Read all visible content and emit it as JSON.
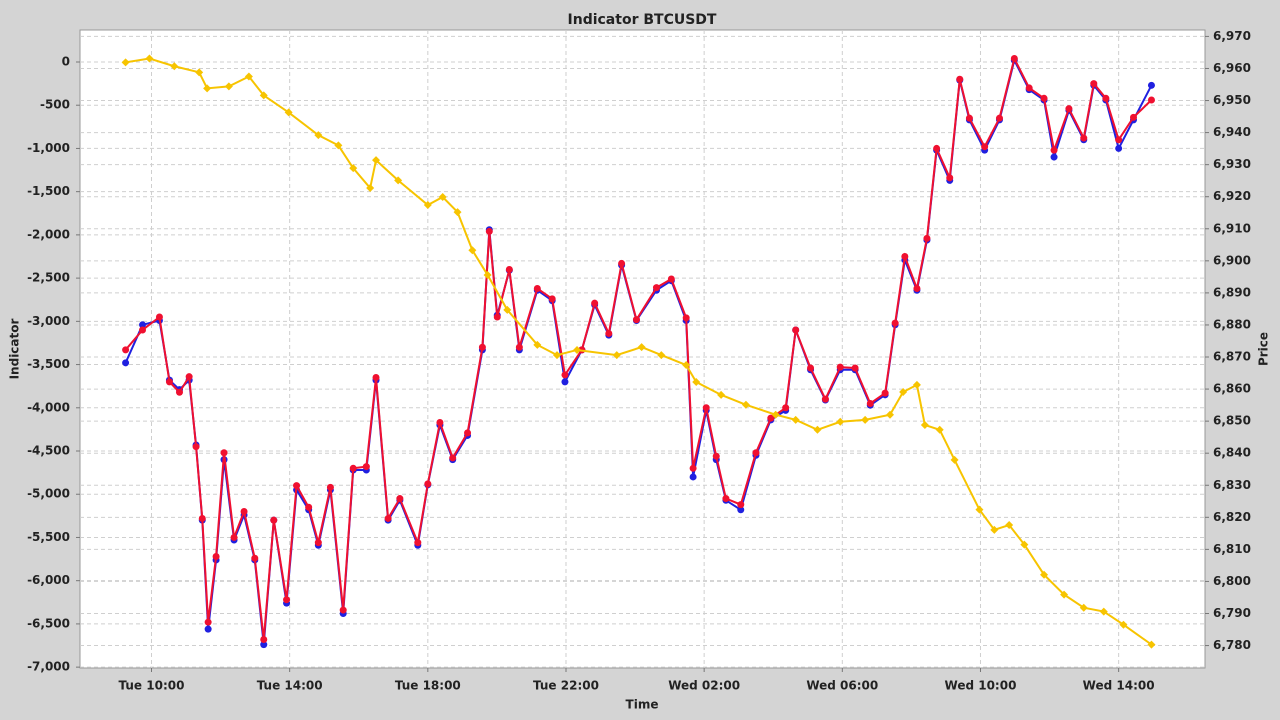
{
  "chart_data": {
    "type": "line",
    "title": "Indicator BTCUSDT",
    "x_label": "Time",
    "y_label": "Indicator",
    "y2_label": "Price",
    "xlim": [
      7.93,
      40.5
    ],
    "xticks": [
      {
        "value": 10,
        "label": "Tue 10:00"
      },
      {
        "value": 14,
        "label": "Tue 14:00"
      },
      {
        "value": 18,
        "label": "Tue 18:00"
      },
      {
        "value": 22,
        "label": "Tue 22:00"
      },
      {
        "value": 26,
        "label": "Wed 02:00"
      },
      {
        "value": 30,
        "label": "Wed 06:00"
      },
      {
        "value": 34,
        "label": "Wed 10:00"
      },
      {
        "value": 38,
        "label": "Wed 14:00"
      }
    ],
    "ylim": [
      -7010,
      370
    ],
    "yticks": [
      0,
      -500,
      {
        "value": -1000,
        "label": "-1,000"
      },
      {
        "value": -1500,
        "label": "-1,500"
      },
      {
        "value": -2000,
        "label": "-2,000"
      },
      {
        "value": -2500,
        "label": "-2,500"
      },
      {
        "value": -3000,
        "label": "-3,000"
      },
      {
        "value": -3500,
        "label": "-3,500"
      },
      {
        "value": -4000,
        "label": "-4,000"
      },
      {
        "value": -4500,
        "label": "-4,500"
      },
      {
        "value": -5000,
        "label": "-5,000"
      },
      {
        "value": -5500,
        "label": "-5,500"
      },
      {
        "value": -6000,
        "label": "-6,000"
      },
      {
        "value": -6500,
        "label": "-6,500"
      },
      {
        "value": -7000,
        "label": "-7,000"
      }
    ],
    "y2lim": [
      6773,
      6972
    ],
    "y2ticks": [
      {
        "value": 6780,
        "label": "6,780"
      },
      {
        "value": 6790,
        "label": "6,790"
      },
      {
        "value": 6800,
        "label": "6,800"
      },
      {
        "value": 6810,
        "label": "6,810"
      },
      {
        "value": 6820,
        "label": "6,820"
      },
      {
        "value": 6830,
        "label": "6,830"
      },
      {
        "value": 6840,
        "label": "6,840"
      },
      {
        "value": 6850,
        "label": "6,850"
      },
      {
        "value": 6860,
        "label": "6,860"
      },
      {
        "value": 6870,
        "label": "6,870"
      },
      {
        "value": 6880,
        "label": "6,880"
      },
      {
        "value": 6890,
        "label": "6,890"
      },
      {
        "value": 6900,
        "label": "6,900"
      },
      {
        "value": 6910,
        "label": "6,910"
      },
      {
        "value": 6920,
        "label": "6,920"
      },
      {
        "value": 6930,
        "label": "6,930"
      },
      {
        "value": 6940,
        "label": "6,940"
      },
      {
        "value": 6950,
        "label": "6,950"
      },
      {
        "value": 6960,
        "label": "6,960"
      },
      {
        "value": 6970,
        "label": "6,970"
      }
    ],
    "grid": true,
    "series": [
      {
        "color": "#2020e0",
        "marker": "circle",
        "x": [
          9.25,
          9.74,
          10.23,
          10.52,
          10.81,
          11.09,
          11.29,
          11.47,
          11.64,
          11.87,
          12.1,
          12.39,
          12.68,
          12.99,
          13.25,
          13.54,
          13.91,
          14.2,
          14.55,
          14.83,
          15.18,
          15.55,
          15.84,
          16.22,
          16.5,
          16.85,
          17.19,
          17.71,
          18.0,
          18.35,
          18.72,
          19.15,
          19.58,
          19.78,
          20.01,
          20.36,
          20.65,
          21.17,
          21.6,
          21.97,
          22.46,
          22.83,
          23.24,
          23.61,
          24.04,
          24.62,
          25.05,
          25.48,
          25.68,
          26.06,
          26.35,
          26.63,
          27.06,
          27.5,
          27.93,
          28.36,
          28.65,
          29.08,
          29.51,
          29.94,
          30.37,
          30.81,
          31.24,
          31.53,
          31.81,
          32.16,
          32.45,
          32.73,
          33.11,
          33.4,
          33.68,
          34.12,
          34.55,
          34.98,
          35.41,
          35.84,
          36.13,
          36.56,
          36.99,
          37.28,
          37.63,
          38.0,
          38.43,
          38.95
        ],
        "values": [
          -3480,
          -3040,
          -2990,
          -3680,
          -3790,
          -3680,
          -4430,
          -5300,
          -6560,
          -5760,
          -4600,
          -5530,
          -5240,
          -5760,
          -6740,
          -5300,
          -6260,
          -4950,
          -5180,
          -5590,
          -4950,
          -6380,
          -4720,
          -4720,
          -3680,
          -5300,
          -5070,
          -5590,
          -4890,
          -4200,
          -4600,
          -4320,
          -3330,
          -1940,
          -2930,
          -2410,
          -3330,
          -2640,
          -2760,
          -3700,
          -3330,
          -2810,
          -3160,
          -2350,
          -2990,
          -2640,
          -2530,
          -2990,
          -4800,
          -4030,
          -4600,
          -5070,
          -5180,
          -4550,
          -4140,
          -4030,
          -3100,
          -3560,
          -3910,
          -3560,
          -3560,
          -3970,
          -3850,
          -3040,
          -2290,
          -2640,
          -2060,
          -1020,
          -1370,
          -210,
          -670,
          -1020,
          -670,
          20,
          -320,
          -440,
          -1100,
          -560,
          -900,
          -270,
          -440,
          -1000,
          -670,
          -270
        ]
      },
      {
        "color": "#f01030",
        "marker": "circle",
        "x": [
          9.25,
          9.74,
          10.23,
          10.52,
          10.81,
          11.09,
          11.29,
          11.47,
          11.64,
          11.87,
          12.1,
          12.39,
          12.68,
          12.99,
          13.25,
          13.54,
          13.91,
          14.2,
          14.55,
          14.83,
          15.18,
          15.55,
          15.84,
          16.22,
          16.5,
          16.85,
          17.19,
          17.71,
          18.0,
          18.35,
          18.72,
          19.15,
          19.58,
          19.78,
          20.01,
          20.36,
          20.65,
          21.17,
          21.6,
          21.97,
          22.46,
          22.83,
          23.24,
          23.61,
          24.04,
          24.62,
          25.05,
          25.48,
          25.68,
          26.06,
          26.35,
          26.63,
          27.06,
          27.5,
          27.93,
          28.36,
          28.65,
          29.08,
          29.51,
          29.94,
          30.37,
          30.81,
          31.24,
          31.53,
          31.81,
          32.16,
          32.45,
          32.73,
          33.11,
          33.4,
          33.68,
          34.12,
          34.55,
          34.98,
          35.41,
          35.84,
          36.13,
          36.56,
          36.99,
          37.28,
          37.63,
          38.0,
          38.43,
          38.95
        ],
        "values": [
          -3330,
          -3100,
          -2950,
          -3700,
          -3820,
          -3640,
          -4450,
          -5280,
          -6480,
          -5720,
          -4520,
          -5500,
          -5200,
          -5740,
          -6680,
          -5300,
          -6220,
          -4900,
          -5150,
          -5560,
          -4920,
          -6340,
          -4700,
          -4680,
          -3650,
          -5280,
          -5050,
          -5560,
          -4880,
          -4170,
          -4580,
          -4290,
          -3300,
          -1960,
          -2950,
          -2400,
          -3300,
          -2620,
          -2740,
          -3620,
          -3330,
          -2790,
          -3140,
          -2330,
          -2980,
          -2610,
          -2510,
          -2960,
          -4700,
          -4000,
          -4560,
          -5050,
          -5120,
          -4520,
          -4120,
          -4000,
          -3100,
          -3540,
          -3900,
          -3530,
          -3540,
          -3950,
          -3830,
          -3020,
          -2250,
          -2620,
          -2040,
          -1000,
          -1340,
          -200,
          -650,
          -980,
          -650,
          40,
          -300,
          -420,
          -1020,
          -540,
          -880,
          -250,
          -420,
          -900,
          -640,
          -440
        ]
      },
      {
        "color": "#f7c400",
        "marker": "diamond",
        "axis": "y2",
        "x": [
          9.25,
          9.94,
          10.66,
          11.38,
          11.61,
          12.24,
          12.82,
          13.25,
          13.97,
          14.83,
          15.41,
          15.84,
          16.33,
          16.5,
          17.14,
          18.0,
          18.43,
          18.86,
          19.29,
          19.73,
          20.3,
          21.17,
          21.74,
          22.32,
          23.47,
          24.19,
          24.76,
          25.48,
          25.77,
          26.49,
          27.21,
          28.07,
          28.65,
          29.28,
          29.94,
          30.66,
          31.38,
          31.76,
          32.16,
          32.39,
          32.82,
          33.25,
          33.97,
          34.4,
          34.83,
          35.27,
          35.84,
          36.42,
          36.99,
          37.57,
          38.14,
          38.95
        ],
        "values": [
          6961.9,
          6963.1,
          6960.7,
          6958.8,
          6953.8,
          6954.4,
          6957.5,
          6951.6,
          6946.3,
          6939.2,
          6936.0,
          6928.9,
          6922.7,
          6931.4,
          6925.1,
          6917.4,
          6919.9,
          6915.2,
          6903.3,
          6895.6,
          6884.7,
          6873.8,
          6870.6,
          6872.2,
          6870.6,
          6873.1,
          6870.6,
          6867.5,
          6862.2,
          6858.2,
          6855.1,
          6852.0,
          6850.4,
          6847.3,
          6849.8,
          6850.4,
          6852.0,
          6859.1,
          6861.3,
          6848.8,
          6847.3,
          6837.9,
          6822.4,
          6816.1,
          6817.6,
          6811.5,
          6802.1,
          6795.9,
          6791.8,
          6790.6,
          6786.5,
          6780.3
        ]
      }
    ]
  }
}
